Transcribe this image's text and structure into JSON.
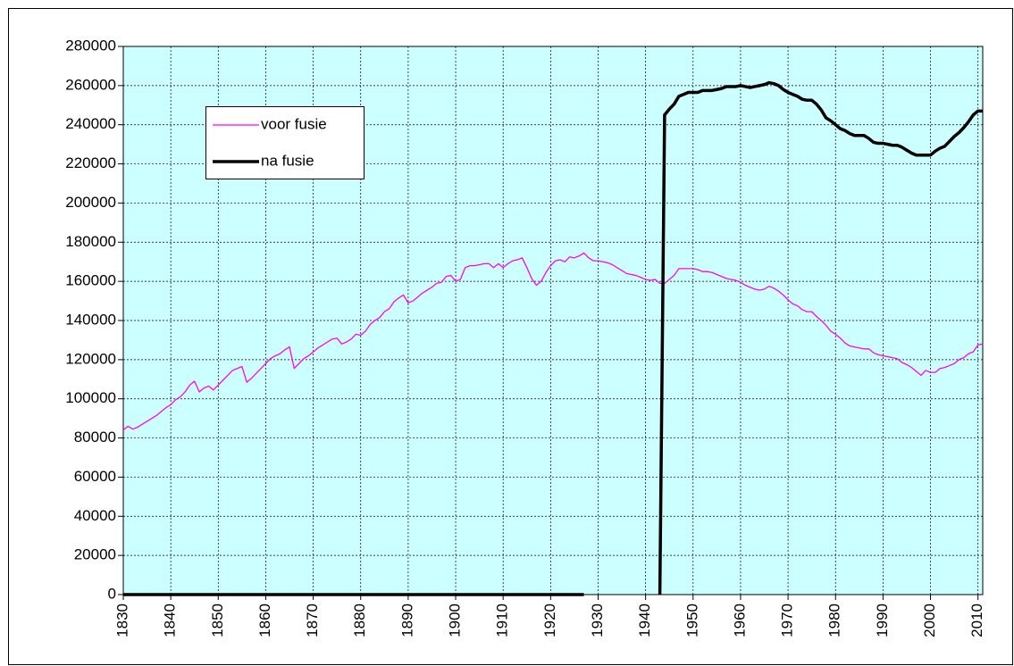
{
  "chart_data": {
    "type": "line",
    "x": [
      1830,
      1831,
      1832,
      1833,
      1834,
      1835,
      1836,
      1837,
      1838,
      1839,
      1840,
      1841,
      1842,
      1843,
      1844,
      1845,
      1846,
      1847,
      1848,
      1849,
      1850,
      1851,
      1852,
      1853,
      1854,
      1855,
      1856,
      1857,
      1858,
      1859,
      1860,
      1861,
      1862,
      1863,
      1864,
      1865,
      1866,
      1867,
      1868,
      1869,
      1870,
      1871,
      1872,
      1873,
      1874,
      1875,
      1876,
      1877,
      1878,
      1879,
      1880,
      1881,
      1882,
      1883,
      1884,
      1885,
      1886,
      1887,
      1888,
      1889,
      1890,
      1891,
      1892,
      1893,
      1894,
      1895,
      1896,
      1897,
      1898,
      1899,
      1900,
      1901,
      1902,
      1903,
      1904,
      1905,
      1906,
      1907,
      1908,
      1909,
      1910,
      1911,
      1912,
      1913,
      1914,
      1915,
      1916,
      1917,
      1918,
      1919,
      1920,
      1921,
      1922,
      1923,
      1924,
      1925,
      1926,
      1927,
      1928,
      1929,
      1930,
      1931,
      1932,
      1933,
      1934,
      1935,
      1936,
      1937,
      1938,
      1939,
      1940,
      1941,
      1942,
      1943,
      1944,
      1945,
      1946,
      1947,
      1948,
      1949,
      1950,
      1951,
      1952,
      1953,
      1954,
      1955,
      1956,
      1957,
      1958,
      1959,
      1960,
      1961,
      1962,
      1963,
      1964,
      1965,
      1966,
      1967,
      1968,
      1969,
      1970,
      1971,
      1972,
      1973,
      1974,
      1975,
      1976,
      1977,
      1978,
      1979,
      1980,
      1981,
      1982,
      1983,
      1984,
      1985,
      1986,
      1987,
      1988,
      1989,
      1990,
      1991,
      1992,
      1993,
      1994,
      1995,
      1996,
      1997,
      1998,
      1999,
      2000,
      2001,
      2002,
      2003,
      2004,
      2005,
      2006,
      2007,
      2008,
      2009,
      2010,
      2011
    ],
    "series": [
      {
        "name": "voor fusie",
        "color": "#ff00ff",
        "width": 1.3,
        "values": [
          84000,
          86000,
          84500,
          85500,
          87000,
          88500,
          90000,
          91500,
          93500,
          95500,
          97000,
          99500,
          101000,
          103500,
          107000,
          109000,
          103500,
          105500,
          106500,
          104500,
          107000,
          109500,
          112000,
          114500,
          115500,
          116500,
          108500,
          110500,
          113000,
          115500,
          118000,
          120500,
          122000,
          123000,
          125000,
          126500,
          115500,
          118000,
          120500,
          122000,
          124000,
          126000,
          127500,
          129000,
          130500,
          131000,
          128000,
          129000,
          130500,
          133000,
          132500,
          134500,
          138000,
          140000,
          141500,
          144500,
          146000,
          149500,
          151500,
          153000,
          149000,
          150000,
          152000,
          154000,
          155500,
          157000,
          159000,
          159500,
          162500,
          163000,
          160000,
          161000,
          167000,
          168000,
          168000,
          168500,
          169000,
          169000,
          167000,
          169000,
          167000,
          169000,
          170500,
          171000,
          172000,
          167000,
          161500,
          158000,
          160000,
          164500,
          168000,
          170500,
          171000,
          170000,
          172500,
          172000,
          173000,
          174500,
          172000,
          170500,
          170500,
          170000,
          169500,
          168500,
          167000,
          165500,
          164000,
          163500,
          163000,
          162000,
          161000,
          160500,
          161000,
          159000,
          159000,
          161000,
          163000,
          166500,
          166500,
          166500,
          166500,
          166000,
          165000,
          165000,
          164500,
          163500,
          162500,
          161500,
          161000,
          160500,
          159500,
          158000,
          157000,
          156000,
          155500,
          156000,
          157500,
          156500,
          155000,
          153000,
          150500,
          148500,
          147500,
          145500,
          144500,
          144500,
          142000,
          140000,
          137500,
          134500,
          133000,
          131000,
          128500,
          127000,
          126500,
          126000,
          125500,
          125500,
          123500,
          122500,
          122000,
          121500,
          121000,
          120500,
          118500,
          117500,
          116000,
          114000,
          112000,
          114500,
          113500,
          113500,
          115500,
          116000,
          117000,
          118000,
          120000,
          121000,
          123000,
          124000,
          127500,
          128000
        ]
      },
      {
        "name": "na fusie",
        "color": "#000000",
        "width": 3.5,
        "values": [
          0,
          0,
          0,
          0,
          0,
          0,
          0,
          0,
          0,
          0,
          0,
          0,
          0,
          0,
          0,
          0,
          0,
          0,
          0,
          0,
          0,
          0,
          0,
          0,
          0,
          0,
          0,
          0,
          0,
          0,
          0,
          0,
          0,
          0,
          0,
          0,
          0,
          0,
          0,
          0,
          0,
          0,
          0,
          0,
          0,
          0,
          0,
          0,
          0,
          0,
          0,
          0,
          0,
          0,
          0,
          0,
          0,
          0,
          0,
          0,
          0,
          0,
          0,
          0,
          0,
          0,
          0,
          0,
          0,
          0,
          0,
          0,
          0,
          0,
          0,
          0,
          0,
          0,
          0,
          0,
          0,
          0,
          0,
          0,
          0,
          0,
          0,
          0,
          0,
          0,
          0,
          0,
          0,
          0,
          0,
          0,
          0,
          0,
          null,
          null,
          null,
          null,
          null,
          null,
          null,
          null,
          null,
          null,
          null,
          null,
          null,
          null,
          null,
          0,
          245000,
          248000,
          250500,
          254500,
          255500,
          256500,
          256500,
          256500,
          257500,
          257500,
          257500,
          258000,
          258500,
          259500,
          259500,
          259500,
          260000,
          259500,
          259000,
          259500,
          260000,
          260500,
          261500,
          261000,
          260000,
          258000,
          256500,
          255500,
          254500,
          253000,
          252500,
          252500,
          250500,
          247500,
          243500,
          242000,
          240000,
          238000,
          237000,
          235500,
          234500,
          234500,
          234500,
          233000,
          231000,
          230500,
          230500,
          230000,
          229500,
          229500,
          228500,
          227000,
          225500,
          224500,
          224500,
          224500,
          224500,
          226500,
          228000,
          229000,
          231500,
          234000,
          236000,
          238500,
          241500,
          245000,
          247000,
          247000
        ]
      }
    ],
    "xlim": [
      1830,
      2011
    ],
    "ylim": [
      0,
      280000
    ],
    "xticks": [
      1830,
      1840,
      1850,
      1860,
      1870,
      1880,
      1890,
      1900,
      1910,
      1920,
      1930,
      1940,
      1950,
      1960,
      1970,
      1980,
      1990,
      2000,
      2010
    ],
    "yticks": [
      0,
      20000,
      40000,
      60000,
      80000,
      100000,
      120000,
      140000,
      160000,
      180000,
      200000,
      220000,
      240000,
      260000,
      280000
    ],
    "grid": true,
    "legend": "upper left",
    "background": "#ccffff"
  }
}
